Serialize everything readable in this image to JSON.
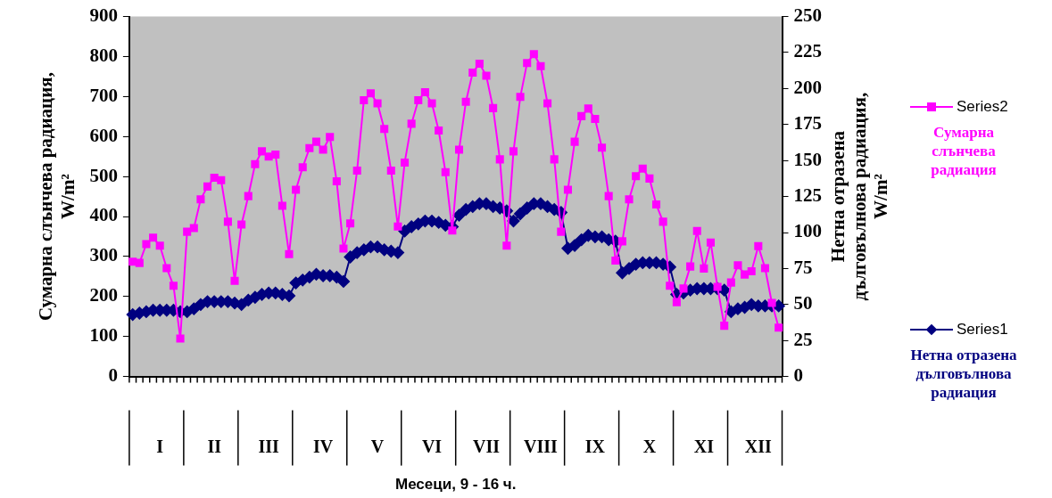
{
  "chart_data": {
    "type": "line",
    "xlabel": "Месеци, 9 - 16 ч.",
    "ylabel": "Сумарна слънчева радиация,\nW/m²",
    "y2label": "Нетна отразена\nдълговълнова радиация,\nW/m²",
    "categories": [
      null,
      null,
      null,
      null,
      "I",
      null,
      null,
      null,
      null,
      null,
      null,
      null,
      "II",
      null,
      null,
      null,
      null,
      null,
      null,
      null,
      "III",
      null,
      null,
      null,
      null,
      null,
      null,
      null,
      "IV",
      null,
      null,
      null,
      null,
      null,
      null,
      null,
      "V",
      null,
      null,
      null,
      null,
      null,
      null,
      null,
      "VI",
      null,
      null,
      null,
      null,
      null,
      null,
      null,
      "VII",
      null,
      null,
      null,
      null,
      null,
      null,
      null,
      "VIII",
      null,
      null,
      null,
      null,
      null,
      null,
      null,
      "IX",
      null,
      null,
      null,
      null,
      null,
      null,
      null,
      "X",
      null,
      null,
      null,
      null,
      null,
      null,
      null,
      "XI",
      null,
      null,
      null,
      null,
      null,
      null,
      null,
      "XII",
      null,
      null,
      null
    ],
    "series": [
      {
        "name": "Series2",
        "color": "#ff00ff",
        "marker": "square",
        "values": [
          287,
          284,
          331,
          347,
          327,
          271,
          227,
          95,
          362,
          371,
          443,
          475,
          497,
          491,
          387,
          239,
          380,
          451,
          531,
          563,
          550,
          555,
          427,
          306,
          467,
          523,
          571,
          587,
          567,
          599,
          488,
          320,
          383,
          515,
          691,
          708,
          683,
          619,
          515,
          375,
          535,
          632,
          691,
          711,
          683,
          615,
          511,
          365,
          567,
          687,
          760,
          782,
          752,
          671,
          543,
          327,
          563,
          699,
          784,
          806,
          776,
          683,
          543,
          362,
          467,
          587,
          651,
          670,
          644,
          572,
          451,
          290,
          338,
          443,
          501,
          520,
          495,
          430,
          387,
          227,
          186,
          220,
          275,
          364,
          270,
          335,
          224,
          127,
          235,
          278,
          255,
          263,
          326,
          271,
          184,
          122
        ]
      },
      {
        "name": "Series1",
        "color": "#000080",
        "marker": "diamond",
        "axis": "y2",
        "values": [
          43,
          44,
          45,
          46,
          46,
          46,
          46,
          45,
          45,
          47,
          50,
          52,
          52,
          52,
          52,
          51,
          50,
          53,
          55,
          57,
          58,
          58,
          57,
          56,
          65,
          67,
          69,
          71,
          70,
          70,
          69,
          66,
          83,
          86,
          88,
          90,
          90,
          88,
          87,
          86,
          101,
          104,
          106,
          108,
          108,
          107,
          105,
          104,
          112,
          116,
          118,
          120,
          120,
          118,
          117,
          115,
          108,
          113,
          117,
          120,
          120,
          118,
          116,
          114,
          89,
          91,
          95,
          98,
          97,
          97,
          95,
          94,
          72,
          75,
          78,
          79,
          79,
          79,
          78,
          76,
          57,
          58,
          60,
          61,
          61,
          61,
          61,
          60,
          45,
          47,
          48,
          50,
          49,
          49,
          49,
          49
        ]
      }
    ],
    "ylim": [
      0,
      900
    ],
    "yticks": [
      0,
      100,
      200,
      300,
      400,
      500,
      600,
      700,
      800,
      900
    ],
    "y2lim": [
      0,
      250
    ],
    "y2ticks": [
      0,
      25,
      50,
      75,
      100,
      125,
      150,
      175,
      200,
      225,
      250
    ],
    "grid": false,
    "legend": "right",
    "annotations": [
      "Сумарна слънчева радиация",
      "Нетна отразена дълговълнова радиация"
    ]
  }
}
